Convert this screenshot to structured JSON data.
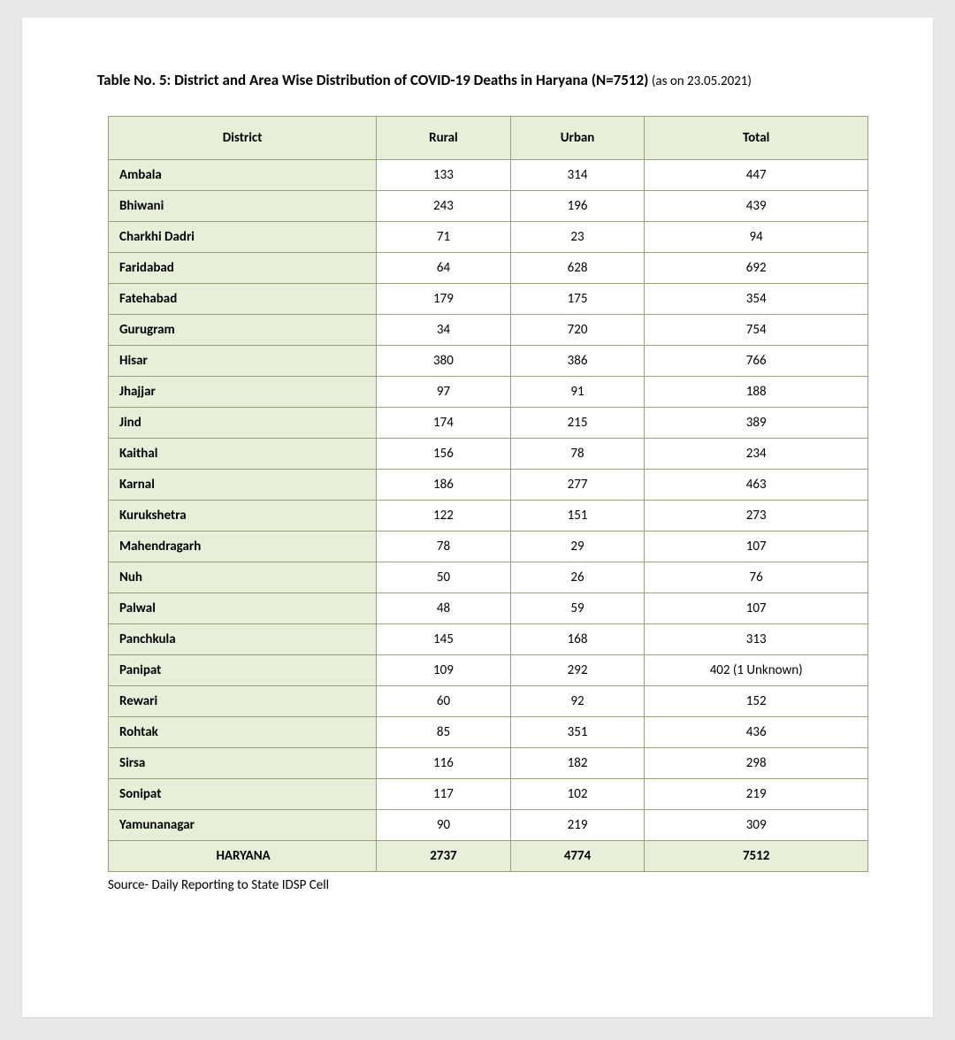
{
  "title": {
    "main": "Table No. 5: District and Area Wise Distribution of COVID-19 Deaths in Haryana (N=7512)",
    "sub": " (as on 23.05.2021)"
  },
  "table": {
    "columns": [
      "District",
      "Rural",
      "Urban",
      "Total"
    ],
    "header_bg": "#e8efd9",
    "border_color": "#9aa07a",
    "rows": [
      {
        "district": "Ambala",
        "rural": "133",
        "urban": "314",
        "total": "447"
      },
      {
        "district": "Bhiwani",
        "rural": "243",
        "urban": "196",
        "total": "439"
      },
      {
        "district": "Charkhi Dadri",
        "rural": "71",
        "urban": "23",
        "total": "94"
      },
      {
        "district": "Faridabad",
        "rural": "64",
        "urban": "628",
        "total": "692"
      },
      {
        "district": "Fatehabad",
        "rural": "179",
        "urban": "175",
        "total": "354"
      },
      {
        "district": "Gurugram",
        "rural": "34",
        "urban": "720",
        "total": "754"
      },
      {
        "district": "Hisar",
        "rural": "380",
        "urban": "386",
        "total": "766"
      },
      {
        "district": "Jhajjar",
        "rural": "97",
        "urban": "91",
        "total": "188"
      },
      {
        "district": "Jind",
        "rural": "174",
        "urban": "215",
        "total": "389"
      },
      {
        "district": "Kaithal",
        "rural": "156",
        "urban": "78",
        "total": "234"
      },
      {
        "district": "Karnal",
        "rural": "186",
        "urban": "277",
        "total": "463"
      },
      {
        "district": "Kurukshetra",
        "rural": "122",
        "urban": "151",
        "total": "273"
      },
      {
        "district": "Mahendragarh",
        "rural": "78",
        "urban": "29",
        "total": "107"
      },
      {
        "district": "Nuh",
        "rural": "50",
        "urban": "26",
        "total": "76"
      },
      {
        "district": "Palwal",
        "rural": "48",
        "urban": "59",
        "total": "107"
      },
      {
        "district": "Panchkula",
        "rural": "145",
        "urban": "168",
        "total": "313"
      },
      {
        "district": "Panipat",
        "rural": "109",
        "urban": "292",
        "total": "402 (1 Unknown)"
      },
      {
        "district": "Rewari",
        "rural": "60",
        "urban": "92",
        "total": "152"
      },
      {
        "district": "Rohtak",
        "rural": "85",
        "urban": "351",
        "total": "436"
      },
      {
        "district": "Sirsa",
        "rural": "116",
        "urban": "182",
        "total": "298"
      },
      {
        "district": "Sonipat",
        "rural": "117",
        "urban": "102",
        "total": "219"
      },
      {
        "district": "Yamunanagar",
        "rural": "90",
        "urban": "219",
        "total": "309"
      }
    ],
    "total_row": {
      "district": "HARYANA",
      "rural": "2737",
      "urban": "4774",
      "total": "7512"
    }
  },
  "source": "Source- Daily Reporting to State IDSP Cell"
}
